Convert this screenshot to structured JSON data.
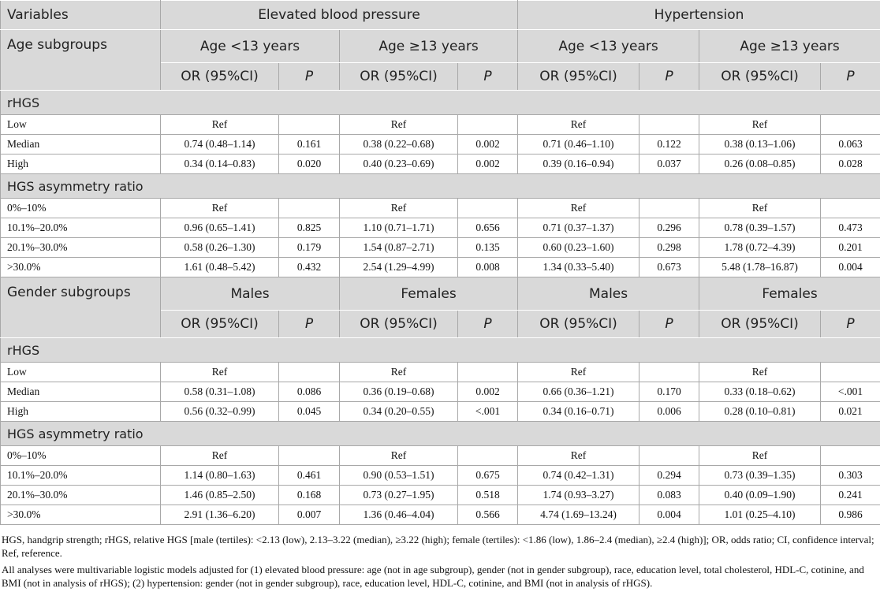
{
  "header": {
    "variables": "Variables",
    "groups": [
      "Elevated blood pressure",
      "Hypertension"
    ],
    "or_label": "OR (95%CI)",
    "p_label": "P"
  },
  "sections": [
    {
      "label": "Age subgroups",
      "groups": [
        "Age <13 years",
        "Age ≥13 years",
        "Age <13 years",
        "Age ≥13 years"
      ],
      "blocks": [
        {
          "title": "rHGS",
          "rows": [
            {
              "label": "Low",
              "cells": [
                "Ref",
                null,
                "Ref",
                null,
                "Ref",
                null,
                "Ref",
                null
              ]
            },
            {
              "label": "Median",
              "cells": [
                "0.74 (0.48–1.14)",
                "0.161",
                "0.38 (0.22–0.68)",
                "0.002",
                "0.71 (0.46–1.10)",
                "0.122",
                "0.38 (0.13–1.06)",
                "0.063"
              ]
            },
            {
              "label": "High",
              "cells": [
                "0.34 (0.14–0.83)",
                "0.020",
                "0.40 (0.23–0.69)",
                "0.002",
                "0.39 (0.16–0.94)",
                "0.037",
                "0.26 (0.08–0.85)",
                "0.028"
              ]
            }
          ]
        },
        {
          "title": "HGS asymmetry ratio",
          "rows": [
            {
              "label": "0%–10%",
              "cells": [
                "Ref",
                null,
                "Ref",
                null,
                "Ref",
                null,
                "Ref",
                null
              ]
            },
            {
              "label": "10.1%–20.0%",
              "cells": [
                "0.96 (0.65–1.41)",
                "0.825",
                "1.10 (0.71–1.71)",
                "0.656",
                "0.71 (0.37–1.37)",
                "0.296",
                "0.78 (0.39–1.57)",
                "0.473"
              ]
            },
            {
              "label": "20.1%–30.0%",
              "cells": [
                "0.58 (0.26–1.30)",
                "0.179",
                "1.54 (0.87–2.71)",
                "0.135",
                "0.60 (0.23–1.60)",
                "0.298",
                "1.78 (0.72–4.39)",
                "0.201"
              ]
            },
            {
              "label": ">30.0%",
              "cells": [
                "1.61 (0.48–5.42)",
                "0.432",
                "2.54 (1.29–4.99)",
                "0.008",
                "1.34 (0.33–5.40)",
                "0.673",
                "5.48 (1.78–16.87)",
                "0.004"
              ]
            }
          ]
        }
      ]
    },
    {
      "label": "Gender subgroups",
      "groups": [
        "Males",
        "Females",
        "Males",
        "Females"
      ],
      "blocks": [
        {
          "title": "rHGS",
          "rows": [
            {
              "label": "Low",
              "cells": [
                "Ref",
                null,
                "Ref",
                null,
                "Ref",
                null,
                "Ref",
                null
              ]
            },
            {
              "label": "Median",
              "cells": [
                "0.58 (0.31–1.08)",
                "0.086",
                "0.36 (0.19–0.68)",
                "0.002",
                "0.66 (0.36–1.21)",
                "0.170",
                "0.33 (0.18–0.62)",
                "<.001"
              ]
            },
            {
              "label": "High",
              "cells": [
                "0.56 (0.32–0.99)",
                "0.045",
                "0.34 (0.20–0.55)",
                "<.001",
                "0.34 (0.16–0.71)",
                "0.006",
                "0.28 (0.10–0.81)",
                "0.021"
              ]
            }
          ]
        },
        {
          "title": "HGS asymmetry ratio",
          "rows": [
            {
              "label": "0%–10%",
              "cells": [
                "Ref",
                null,
                "Ref",
                null,
                "Ref",
                null,
                "Ref",
                null
              ]
            },
            {
              "label": "10.1%–20.0%",
              "cells": [
                "1.14 (0.80–1.63)",
                "0.461",
                "0.90 (0.53–1.51)",
                "0.675",
                "0.74 (0.42–1.31)",
                "0.294",
                "0.73 (0.39–1.35)",
                "0.303"
              ]
            },
            {
              "label": "20.1%–30.0%",
              "cells": [
                "1.46 (0.85–2.50)",
                "0.168",
                "0.73 (0.27–1.95)",
                "0.518",
                "1.74 (0.93–3.27)",
                "0.083",
                "0.40 (0.09–1.90)",
                "0.241"
              ]
            },
            {
              "label": ">30.0%",
              "cells": [
                "2.91 (1.36–6.20)",
                "0.007",
                "1.36 (0.46–4.04)",
                "0.566",
                "4.74 (1.69–13.24)",
                "0.004",
                "1.01 (0.25–4.10)",
                "0.986"
              ]
            }
          ]
        }
      ]
    }
  ],
  "footnotes": [
    "HGS, handgrip strength; rHGS, relative HGS [male (tertiles): <2.13 (low), 2.13–3.22 (median), ≥3.22 (high); female (tertiles): <1.86 (low), 1.86–2.4 (median), ≥2.4 (high)]; OR, odds ratio; CI, confidence interval; Ref, reference.",
    "All analyses were multivariable logistic models adjusted for (1) elevated blood pressure: age (not in age subgroup), gender (not in gender subgroup), race, education level, total cholesterol, HDL-C, cotinine, and BMI (not in analysis of rHGS); (2) hypertension: gender (not in gender subgroup), race, education level, HDL-C, cotinine, and BMI (not in analysis of rHGS)."
  ]
}
